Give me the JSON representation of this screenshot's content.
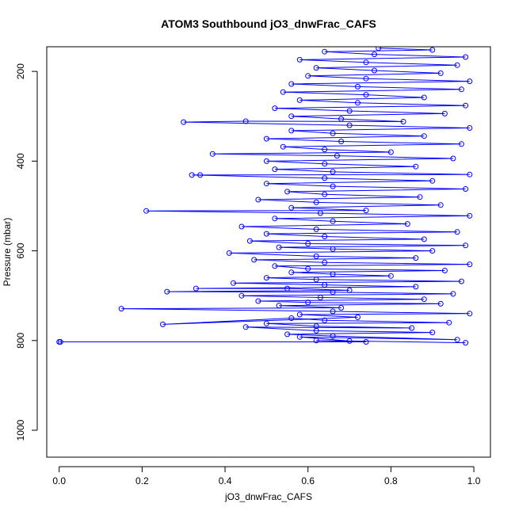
{
  "chart_data": {
    "type": "scatter",
    "title": "ATOM3 Southbound jO3_dnwFrac_CAFS",
    "xlabel": "jO3_dnwFrac_CAFS",
    "ylabel": "Pressure (mbar)",
    "xlim": [
      -0.03,
      1.04
    ],
    "ylim": [
      1060,
      145
    ],
    "y_reversed": true,
    "grid": false,
    "legend": "none",
    "x_ticks": [
      0.0,
      0.2,
      0.4,
      0.6,
      0.8,
      1.0
    ],
    "x_tick_labels": [
      "0.0",
      "0.2",
      "0.4",
      "0.6",
      "0.8",
      "1.0"
    ],
    "y_ticks": [
      200,
      400,
      600,
      800,
      1000
    ],
    "y_tick_labels": [
      "200",
      "400",
      "600",
      "800",
      "1000"
    ],
    "series": [
      {
        "marker": "open-circle",
        "line": true,
        "color": "#0000ff",
        "points": [
          [
            0.0,
            803
          ],
          [
            0.003,
            803
          ],
          [
            0.74,
            803
          ],
          [
            0.62,
            800
          ],
          [
            0.98,
            805
          ],
          [
            0.7,
            801
          ],
          [
            0.58,
            792
          ],
          [
            0.96,
            798
          ],
          [
            0.66,
            790
          ],
          [
            0.55,
            786
          ],
          [
            0.9,
            782
          ],
          [
            0.62,
            778
          ],
          [
            0.45,
            770
          ],
          [
            0.85,
            772
          ],
          [
            0.62,
            768
          ],
          [
            0.5,
            762
          ],
          [
            0.94,
            760
          ],
          [
            0.64,
            755
          ],
          [
            0.56,
            750
          ],
          [
            0.25,
            764
          ],
          [
            0.72,
            748
          ],
          [
            0.58,
            742
          ],
          [
            0.99,
            740
          ],
          [
            0.66,
            735
          ],
          [
            0.15,
            729
          ],
          [
            0.68,
            727
          ],
          [
            0.53,
            722
          ],
          [
            0.92,
            718
          ],
          [
            0.6,
            715
          ],
          [
            0.48,
            712
          ],
          [
            0.88,
            708
          ],
          [
            0.63,
            704
          ],
          [
            0.44,
            700
          ],
          [
            0.95,
            696
          ],
          [
            0.66,
            692
          ],
          [
            0.26,
            691
          ],
          [
            0.7,
            688
          ],
          [
            0.55,
            684
          ],
          [
            0.33,
            684
          ],
          [
            0.86,
            680
          ],
          [
            0.64,
            676
          ],
          [
            0.42,
            672
          ],
          [
            0.97,
            668
          ],
          [
            0.62,
            664
          ],
          [
            0.5,
            660
          ],
          [
            0.8,
            656
          ],
          [
            0.66,
            652
          ],
          [
            0.56,
            648
          ],
          [
            0.93,
            644
          ],
          [
            0.6,
            640
          ],
          [
            0.52,
            634
          ],
          [
            0.99,
            630
          ],
          [
            0.64,
            626
          ],
          [
            0.47,
            620
          ],
          [
            0.86,
            616
          ],
          [
            0.62,
            612
          ],
          [
            0.41,
            605
          ],
          [
            0.9,
            600
          ],
          [
            0.66,
            596
          ],
          [
            0.53,
            592
          ],
          [
            0.98,
            588
          ],
          [
            0.6,
            584
          ],
          [
            0.46,
            578
          ],
          [
            0.88,
            574
          ],
          [
            0.64,
            568
          ],
          [
            0.5,
            562
          ],
          [
            0.96,
            558
          ],
          [
            0.62,
            552
          ],
          [
            0.44,
            546
          ],
          [
            0.84,
            540
          ],
          [
            0.66,
            534
          ],
          [
            0.52,
            528
          ],
          [
            0.99,
            522
          ],
          [
            0.63,
            516
          ],
          [
            0.21,
            511
          ],
          [
            0.74,
            510
          ],
          [
            0.56,
            504
          ],
          [
            0.92,
            498
          ],
          [
            0.62,
            492
          ],
          [
            0.48,
            486
          ],
          [
            0.87,
            480
          ],
          [
            0.64,
            474
          ],
          [
            0.55,
            468
          ],
          [
            0.98,
            462
          ],
          [
            0.66,
            456
          ],
          [
            0.5,
            450
          ],
          [
            0.9,
            444
          ],
          [
            0.64,
            438
          ],
          [
            0.32,
            431
          ],
          [
            0.34,
            431
          ],
          [
            0.99,
            430
          ],
          [
            0.66,
            424
          ],
          [
            0.52,
            418
          ],
          [
            0.86,
            412
          ],
          [
            0.64,
            406
          ],
          [
            0.5,
            400
          ],
          [
            0.95,
            394
          ],
          [
            0.67,
            388
          ],
          [
            0.37,
            384
          ],
          [
            0.8,
            380
          ],
          [
            0.64,
            374
          ],
          [
            0.54,
            368
          ],
          [
            0.97,
            362
          ],
          [
            0.68,
            356
          ],
          [
            0.5,
            350
          ],
          [
            0.88,
            344
          ],
          [
            0.66,
            338
          ],
          [
            0.56,
            332
          ],
          [
            0.99,
            326
          ],
          [
            0.7,
            320
          ],
          [
            0.3,
            313
          ],
          [
            0.45,
            311
          ],
          [
            0.83,
            312
          ],
          [
            0.68,
            306
          ],
          [
            0.56,
            300
          ],
          [
            0.93,
            294
          ],
          [
            0.7,
            288
          ],
          [
            0.52,
            282
          ],
          [
            0.98,
            276
          ],
          [
            0.72,
            270
          ],
          [
            0.58,
            264
          ],
          [
            0.88,
            258
          ],
          [
            0.74,
            252
          ],
          [
            0.54,
            246
          ],
          [
            0.97,
            240
          ],
          [
            0.72,
            234
          ],
          [
            0.56,
            228
          ],
          [
            0.99,
            222
          ],
          [
            0.74,
            216
          ],
          [
            0.6,
            210
          ],
          [
            0.92,
            204
          ],
          [
            0.76,
            198
          ],
          [
            0.62,
            192
          ],
          [
            0.96,
            186
          ],
          [
            0.74,
            180
          ],
          [
            0.58,
            174
          ],
          [
            0.98,
            168
          ],
          [
            0.76,
            162
          ],
          [
            0.64,
            156
          ],
          [
            0.9,
            152
          ],
          [
            0.77,
            148
          ]
        ]
      }
    ]
  }
}
